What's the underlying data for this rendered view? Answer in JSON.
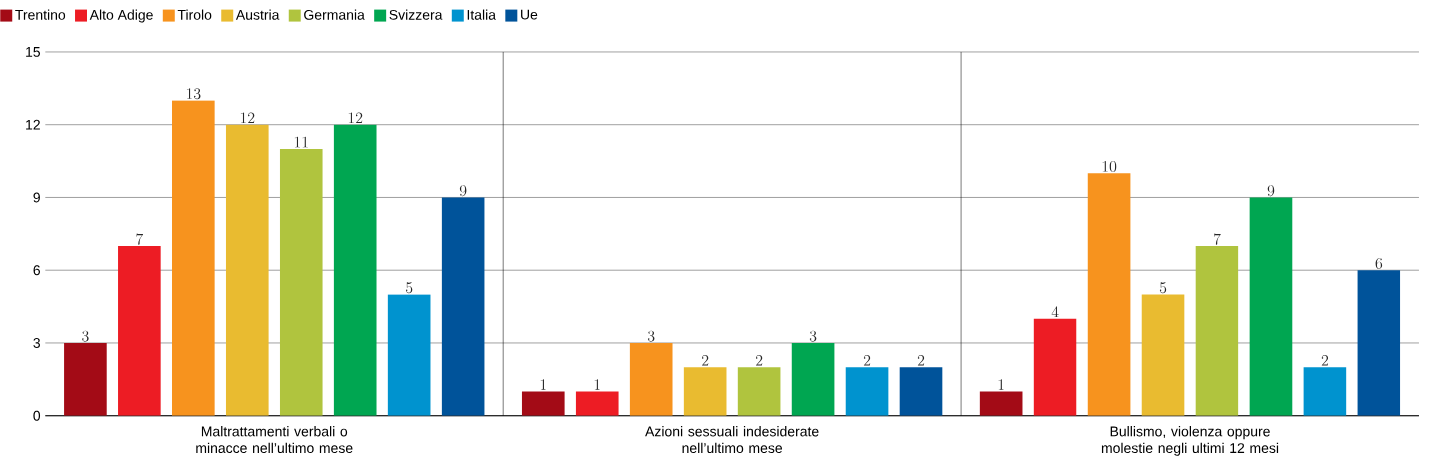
{
  "chart_data": {
    "type": "bar",
    "categories": [
      "Maltrattamenti verbali o minacce nell’ultimo mese",
      "Azioni sessuali indesiderate nell’ultimo mese",
      "Bullismo, violenza oppure molestie negli ultimi 12 mesi"
    ],
    "series": [
      {
        "name": "Trentino",
        "color": "#a30b16",
        "values": [
          3,
          1,
          1
        ]
      },
      {
        "name": "Alto Adige",
        "color": "#ed1c24",
        "values": [
          7,
          1,
          4
        ]
      },
      {
        "name": "Tirolo",
        "color": "#f7931e",
        "values": [
          13,
          3,
          10
        ]
      },
      {
        "name": "Austria",
        "color": "#e9bb30",
        "values": [
          12,
          2,
          5
        ]
      },
      {
        "name": "Germania",
        "color": "#b0c43e",
        "values": [
          11,
          2,
          7
        ]
      },
      {
        "name": "Svizzera",
        "color": "#00a651",
        "values": [
          12,
          3,
          9
        ]
      },
      {
        "name": "Italia",
        "color": "#0093cf",
        "values": [
          5,
          2,
          2
        ]
      },
      {
        "name": "Ue",
        "color": "#00539a",
        "values": [
          9,
          2,
          6
        ]
      }
    ],
    "ylim": [
      0,
      15
    ],
    "yticks": [
      0,
      3,
      6,
      9,
      12,
      15
    ],
    "grid": "y",
    "legend": "top left",
    "data_labels": true
  }
}
